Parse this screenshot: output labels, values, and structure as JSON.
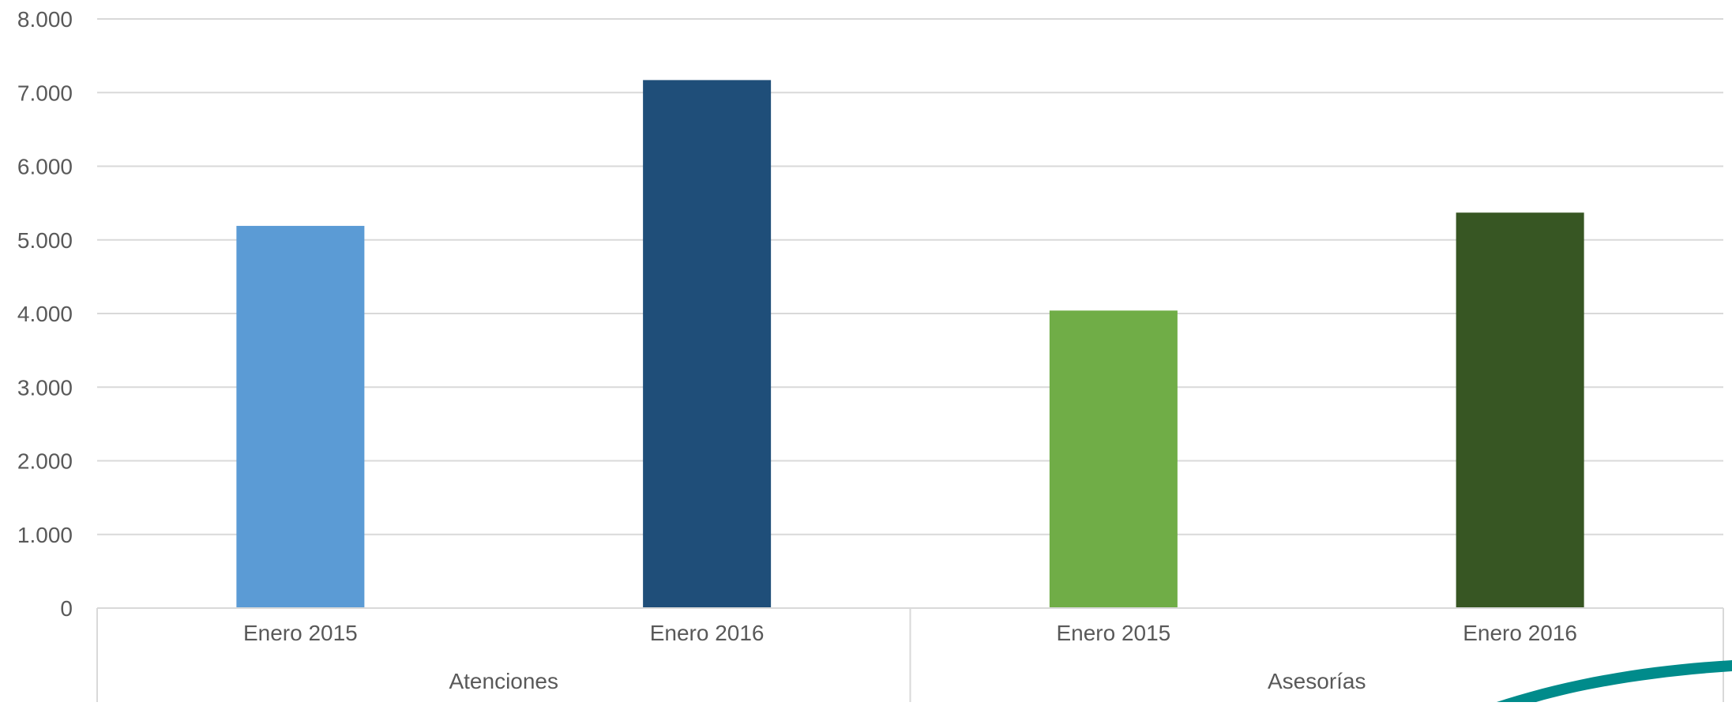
{
  "chart_data": {
    "type": "bar",
    "title": "",
    "xlabel": "",
    "ylabel": "",
    "ylim": [
      0,
      8000
    ],
    "yticks": [
      0,
      1000,
      2000,
      3000,
      4000,
      5000,
      6000,
      7000,
      8000
    ],
    "ytick_labels": [
      "0",
      "1.000",
      "2.000",
      "3.000",
      "4.000",
      "5.000",
      "6.000",
      "7.000",
      "8.000"
    ],
    "grid": true,
    "legend": "none",
    "groups": [
      {
        "label": "Atenciones",
        "bars": [
          {
            "category": "Enero 2015",
            "value": 5190,
            "color": "#5B9BD5"
          },
          {
            "category": "Enero 2016",
            "value": 7170,
            "color": "#1F4E79"
          }
        ]
      },
      {
        "label": "Asesorías",
        "bars": [
          {
            "category": "Enero 2015",
            "value": 4040,
            "color": "#70AD47"
          },
          {
            "category": "Enero 2016",
            "value": 5370,
            "color": "#375623"
          }
        ]
      }
    ]
  },
  "decoration": {
    "swoosh_color": "#008B8B"
  }
}
